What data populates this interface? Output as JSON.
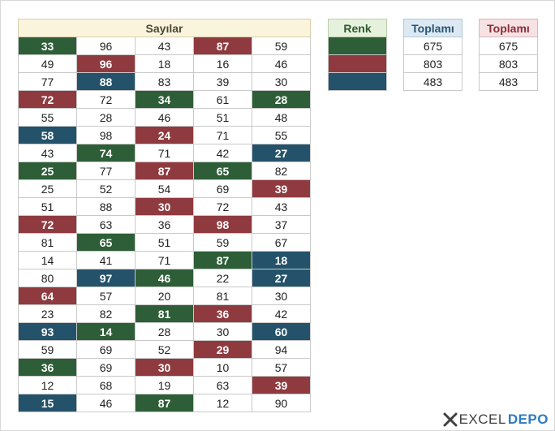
{
  "sheet": {
    "main_table": {
      "header": "Sayılar",
      "rows": [
        [
          {
            "v": "33",
            "c": "g"
          },
          {
            "v": "96"
          },
          {
            "v": "43"
          },
          {
            "v": "87",
            "c": "r"
          },
          {
            "v": "59"
          }
        ],
        [
          {
            "v": "49"
          },
          {
            "v": "96",
            "c": "r"
          },
          {
            "v": "18"
          },
          {
            "v": "16"
          },
          {
            "v": "46"
          }
        ],
        [
          {
            "v": "77"
          },
          {
            "v": "88",
            "c": "b"
          },
          {
            "v": "83"
          },
          {
            "v": "39"
          },
          {
            "v": "30"
          }
        ],
        [
          {
            "v": "72",
            "c": "r"
          },
          {
            "v": "72"
          },
          {
            "v": "34",
            "c": "g"
          },
          {
            "v": "61"
          },
          {
            "v": "28",
            "c": "g"
          }
        ],
        [
          {
            "v": "55"
          },
          {
            "v": "28"
          },
          {
            "v": "46"
          },
          {
            "v": "51"
          },
          {
            "v": "48"
          }
        ],
        [
          {
            "v": "58",
            "c": "b"
          },
          {
            "v": "98"
          },
          {
            "v": "24",
            "c": "r"
          },
          {
            "v": "71"
          },
          {
            "v": "55"
          }
        ],
        [
          {
            "v": "43"
          },
          {
            "v": "74",
            "c": "g"
          },
          {
            "v": "71"
          },
          {
            "v": "42"
          },
          {
            "v": "27",
            "c": "b"
          }
        ],
        [
          {
            "v": "25",
            "c": "g"
          },
          {
            "v": "77"
          },
          {
            "v": "87",
            "c": "r"
          },
          {
            "v": "65",
            "c": "g"
          },
          {
            "v": "82"
          }
        ],
        [
          {
            "v": "25"
          },
          {
            "v": "52"
          },
          {
            "v": "54"
          },
          {
            "v": "69"
          },
          {
            "v": "39",
            "c": "r"
          }
        ],
        [
          {
            "v": "51"
          },
          {
            "v": "88"
          },
          {
            "v": "30",
            "c": "r"
          },
          {
            "v": "72"
          },
          {
            "v": "43"
          }
        ],
        [
          {
            "v": "72",
            "c": "r"
          },
          {
            "v": "63"
          },
          {
            "v": "36"
          },
          {
            "v": "98",
            "c": "r"
          },
          {
            "v": "37"
          }
        ],
        [
          {
            "v": "81"
          },
          {
            "v": "65",
            "c": "g"
          },
          {
            "v": "51"
          },
          {
            "v": "59"
          },
          {
            "v": "67"
          }
        ],
        [
          {
            "v": "14"
          },
          {
            "v": "41"
          },
          {
            "v": "71"
          },
          {
            "v": "87",
            "c": "g"
          },
          {
            "v": "18",
            "c": "b"
          }
        ],
        [
          {
            "v": "80"
          },
          {
            "v": "97",
            "c": "b"
          },
          {
            "v": "46",
            "c": "g"
          },
          {
            "v": "22"
          },
          {
            "v": "27",
            "c": "b"
          }
        ],
        [
          {
            "v": "64",
            "c": "r"
          },
          {
            "v": "57"
          },
          {
            "v": "20"
          },
          {
            "v": "81"
          },
          {
            "v": "30"
          }
        ],
        [
          {
            "v": "23"
          },
          {
            "v": "82"
          },
          {
            "v": "81",
            "c": "g"
          },
          {
            "v": "36",
            "c": "r"
          },
          {
            "v": "42"
          }
        ],
        [
          {
            "v": "93",
            "c": "b"
          },
          {
            "v": "14",
            "c": "g"
          },
          {
            "v": "28"
          },
          {
            "v": "30"
          },
          {
            "v": "60",
            "c": "b"
          }
        ],
        [
          {
            "v": "59"
          },
          {
            "v": "69"
          },
          {
            "v": "52"
          },
          {
            "v": "29",
            "c": "r"
          },
          {
            "v": "94"
          }
        ],
        [
          {
            "v": "36",
            "c": "g"
          },
          {
            "v": "69"
          },
          {
            "v": "30",
            "c": "r"
          },
          {
            "v": "10"
          },
          {
            "v": "57"
          }
        ],
        [
          {
            "v": "12"
          },
          {
            "v": "68"
          },
          {
            "v": "19"
          },
          {
            "v": "63"
          },
          {
            "v": "39",
            "c": "r"
          }
        ],
        [
          {
            "v": "15",
            "c": "b"
          },
          {
            "v": "46"
          },
          {
            "v": "87",
            "c": "g"
          },
          {
            "v": "12"
          },
          {
            "v": "90"
          }
        ]
      ]
    },
    "renk_table": {
      "header": "Renk",
      "swatches": [
        {
          "name": "green",
          "color": "#2e5e37"
        },
        {
          "name": "red",
          "color": "#8f3a3f"
        },
        {
          "name": "blue",
          "color": "#24526a"
        }
      ]
    },
    "green_total_table": {
      "header": "Toplamı",
      "values": [
        "675",
        "803",
        "483"
      ]
    },
    "red_total_table": {
      "header": "Toplamı",
      "values": [
        "675",
        "803",
        "483"
      ]
    }
  },
  "colors": {
    "green": "#2e5e37",
    "red": "#8f3a3f",
    "blue": "#24526a",
    "header_yellow": "#fbf4dd",
    "header_green": "#e6f1dd",
    "header_blue": "#dde9f2",
    "header_pink": "#f6e1e3"
  },
  "logo": {
    "icon": "excel-x-icon",
    "part1": "EXCEL",
    "part2": "DEPO"
  }
}
